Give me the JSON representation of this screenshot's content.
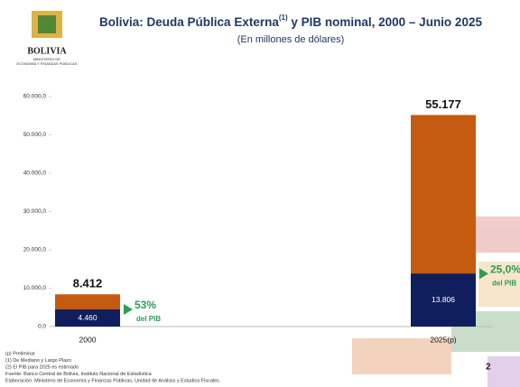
{
  "logo": {
    "name": "BOLIVIA",
    "ministry": [
      "MINISTERIO DE",
      "ECONOMÍA Y FINANZAS PÚBLICAS"
    ]
  },
  "chart_data": {
    "type": "bar",
    "title": "Bolivia: Deuda Pública Externa",
    "title_sup": "(1)",
    "title_rest": " y PIB nominal, 2000 – Junio 2025",
    "subtitle": "(En millones de dólares)",
    "categories": [
      "2000",
      "2025(p)"
    ],
    "series": [
      {
        "color": "#c55a11",
        "values": [
          8412,
          55177
        ],
        "value_labels": [
          "8.412",
          "55.177"
        ]
      },
      {
        "color": "#0f1f5e",
        "values": [
          4460,
          13806
        ],
        "value_labels": [
          "4.460",
          "13.806"
        ]
      }
    ],
    "ylim": [
      0,
      60000
    ],
    "yticks": [
      {
        "value": 0,
        "label": "0,0"
      },
      {
        "value": 10000,
        "label": "10.000,0"
      },
      {
        "value": 20000,
        "label": "20.000,0"
      },
      {
        "value": 30000,
        "label": "30.000,0"
      },
      {
        "value": 40000,
        "label": "40.000,0"
      },
      {
        "value": 50000,
        "label": "50.000,0"
      },
      {
        "value": 60000,
        "label": "60.000,0"
      }
    ],
    "annotations": [
      [
        "53%",
        "del PIB"
      ],
      [
        "25,0%",
        "del PIB"
      ]
    ],
    "annotation_color": "#2a9d57"
  },
  "footnotes": [
    "(p) Preliminar",
    "(1) De Mediano y Largo Plazo",
    "(2) El PIB para 2025 es estimado",
    "Fuente: Banco Central de Bolivia, Instituto Nacional de Estadística",
    "Elaboración: Ministerio de Economía y Finanzas Públicas, Unidad de Análisis y Estudios Fiscales"
  ],
  "page_number": "2"
}
